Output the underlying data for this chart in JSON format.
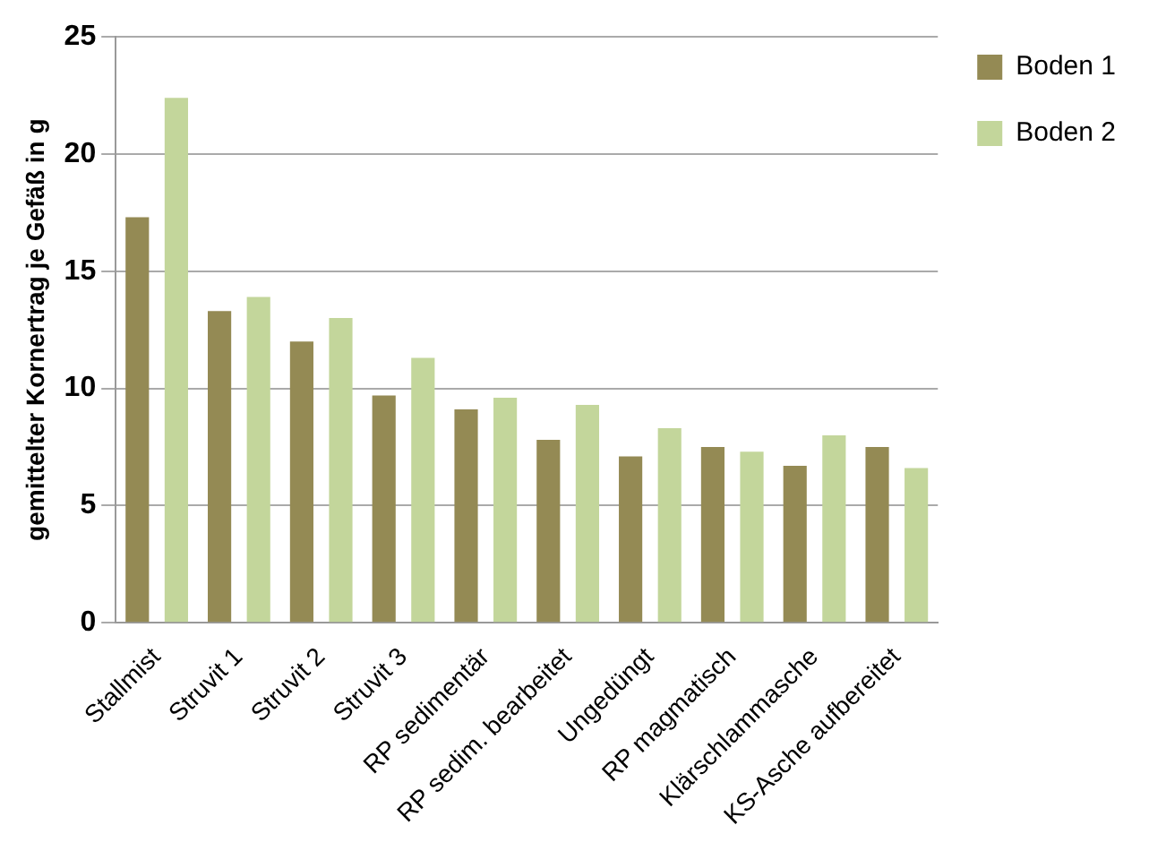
{
  "chart_data": {
    "type": "bar",
    "ylabel": "gemittelter Kornertrag je Gefäß in g",
    "categories": [
      "Stallmist",
      "Struvit 1",
      "Struvit 2",
      "Struvit 3",
      "RP sedimentär",
      "RP sedim. bearbeitet",
      "Ungedüngt",
      "RP magmatisch",
      "Klärschlammasche",
      "KS-Asche aufbereitet"
    ],
    "series": [
      {
        "name": "Boden 1",
        "color": "#948a54",
        "values": [
          17.3,
          13.3,
          12.0,
          9.7,
          9.1,
          7.8,
          7.1,
          7.5,
          6.7,
          7.5
        ]
      },
      {
        "name": "Boden 2",
        "color": "#c3d69b",
        "values": [
          22.4,
          13.9,
          13.0,
          11.3,
          9.6,
          9.3,
          8.3,
          7.3,
          8.0,
          6.6
        ]
      }
    ],
    "ylim": [
      0,
      25
    ],
    "yticks": [
      0,
      5,
      10,
      15,
      20,
      25
    ],
    "grid": "y",
    "legend": "top right"
  }
}
